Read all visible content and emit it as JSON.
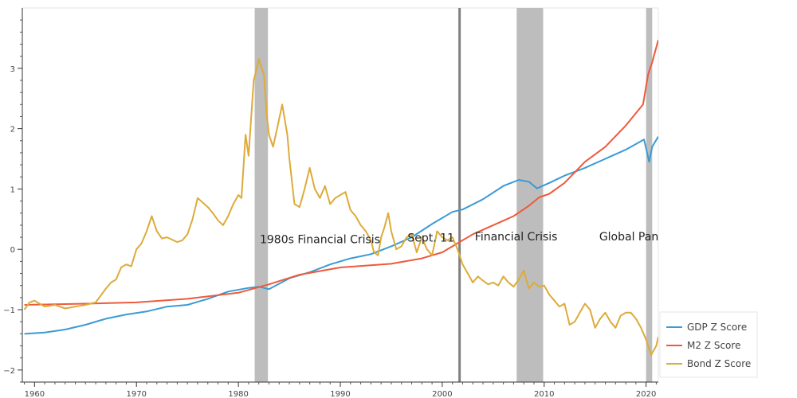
{
  "chart_data": {
    "type": "line",
    "title": "",
    "xlabel": "",
    "ylabel": "",
    "xlim": [
      1958.8,
      2021.2
    ],
    "ylim": [
      -2.2,
      4.0
    ],
    "grid": false,
    "legend_position": "bottom-right",
    "x_ticks": [
      {
        "value": 1960,
        "label": "1960"
      },
      {
        "value": 1970,
        "label": "1970"
      },
      {
        "value": 1980,
        "label": "1980"
      },
      {
        "value": 1990,
        "label": "1990"
      },
      {
        "value": 2000,
        "label": "2000"
      },
      {
        "value": 2010,
        "label": "2010"
      },
      {
        "value": 2020,
        "label": "2020"
      }
    ],
    "y_ticks": [
      {
        "value": -2,
        "label": "−2"
      },
      {
        "value": -1,
        "label": "−1"
      },
      {
        "value": 0,
        "label": "0"
      },
      {
        "value": 1,
        "label": "1"
      },
      {
        "value": 2,
        "label": "2"
      },
      {
        "value": 3,
        "label": "3"
      }
    ],
    "shaded_periods": [
      {
        "start": 1981.6,
        "end": 1982.9,
        "color": "#bdbdbd"
      },
      {
        "start": 2007.3,
        "end": 2009.9,
        "color": "#bdbdbd"
      },
      {
        "start": 2020.0,
        "end": 2020.6,
        "color": "#bdbdbd"
      }
    ],
    "event_lines": [
      {
        "x": 2001.7,
        "color": "#808080"
      }
    ],
    "annotations": [
      {
        "text": "1980s Financial Crisis",
        "x": 1982.1,
        "y": 0.1
      },
      {
        "text": "Sept. 11",
        "x": 1996.6,
        "y": 0.13
      },
      {
        "text": "Financial Crisis",
        "x": 2003.2,
        "y": 0.15
      },
      {
        "text": "Global Pan",
        "x": 2015.4,
        "y": 0.15
      }
    ],
    "series": [
      {
        "name": "GDP Z Score",
        "color": "#3a9bd5",
        "x": [
          1959.0,
          1961.0,
          1963.0,
          1965.0,
          1967.0,
          1969.0,
          1971.0,
          1973.0,
          1975.0,
          1977.0,
          1979.0,
          1981.0,
          1982.0,
          1983.0,
          1985.0,
          1987.0,
          1989.0,
          1991.0,
          1993.0,
          1995.0,
          1997.0,
          1999.0,
          2001.0,
          2002.0,
          2004.0,
          2006.0,
          2007.5,
          2008.5,
          2009.3,
          2010.5,
          2012.0,
          2014.0,
          2016.0,
          2018.0,
          2019.8,
          2020.3,
          2020.6,
          2021.2
        ],
        "y": [
          -1.4,
          -1.38,
          -1.33,
          -1.25,
          -1.15,
          -1.08,
          -1.03,
          -0.95,
          -0.92,
          -0.82,
          -0.7,
          -0.64,
          -0.62,
          -0.66,
          -0.48,
          -0.38,
          -0.25,
          -0.15,
          -0.08,
          0.05,
          0.2,
          0.42,
          0.62,
          0.66,
          0.83,
          1.05,
          1.15,
          1.12,
          1.01,
          1.1,
          1.22,
          1.35,
          1.5,
          1.65,
          1.82,
          1.45,
          1.7,
          1.87
        ]
      },
      {
        "name": "M2 Z Score",
        "color": "#ee5a3c",
        "x": [
          1959.0,
          1965.0,
          1970.0,
          1975.0,
          1980.0,
          1983.0,
          1986.0,
          1990.0,
          1995.0,
          1998.0,
          2000.0,
          2001.5,
          2003.0,
          2005.0,
          2007.0,
          2008.5,
          2009.5,
          2010.5,
          2012.0,
          2014.0,
          2016.0,
          2018.0,
          2019.7,
          2020.2,
          2020.6,
          2021.2
        ],
        "y": [
          -0.92,
          -0.9,
          -0.88,
          -0.82,
          -0.72,
          -0.58,
          -0.42,
          -0.3,
          -0.24,
          -0.15,
          -0.05,
          0.1,
          0.25,
          0.4,
          0.55,
          0.72,
          0.86,
          0.92,
          1.1,
          1.45,
          1.7,
          2.05,
          2.4,
          2.9,
          3.1,
          3.47
        ]
      },
      {
        "name": "Bond Z Score",
        "color": "#ddab3a",
        "x": [
          1959.0,
          1959.5,
          1960.0,
          1960.5,
          1961.0,
          1962.0,
          1963.0,
          1964.0,
          1965.0,
          1966.0,
          1967.0,
          1967.5,
          1968.0,
          1968.5,
          1969.0,
          1969.5,
          1970.0,
          1970.5,
          1971.0,
          1971.5,
          1972.0,
          1972.5,
          1973.0,
          1974.0,
          1974.5,
          1975.0,
          1975.5,
          1976.0,
          1977.0,
          1977.5,
          1978.0,
          1978.5,
          1979.0,
          1979.5,
          1980.0,
          1980.3,
          1980.7,
          1981.0,
          1981.5,
          1981.8,
          1982.0,
          1982.5,
          1982.8,
          1983.0,
          1983.4,
          1983.8,
          1984.3,
          1984.8,
          1985.0,
          1985.5,
          1986.0,
          1986.5,
          1987.0,
          1987.5,
          1988.0,
          1988.5,
          1989.0,
          1989.5,
          1990.0,
          1990.5,
          1991.0,
          1991.5,
          1992.0,
          1992.5,
          1993.0,
          1993.3,
          1993.7,
          1994.0,
          1994.3,
          1994.7,
          1995.0,
          1995.5,
          1996.0,
          1996.5,
          1997.0,
          1997.5,
          1998.0,
          1998.5,
          1999.0,
          1999.5,
          2000.0,
          2000.5,
          2001.0,
          2001.5,
          2002.0,
          2002.5,
          2003.0,
          2003.5,
          2004.0,
          2004.5,
          2005.0,
          2005.5,
          2006.0,
          2006.5,
          2007.0,
          2007.5,
          2008.0,
          2008.5,
          2009.0,
          2009.5,
          2010.0,
          2010.5,
          2011.0,
          2011.5,
          2012.0,
          2012.5,
          2013.0,
          2013.5,
          2014.0,
          2014.5,
          2015.0,
          2015.5,
          2016.0,
          2016.5,
          2017.0,
          2017.5,
          2018.0,
          2018.5,
          2019.0,
          2019.5,
          2020.0,
          2020.5,
          2021.0,
          2021.2
        ],
        "y": [
          -1.0,
          -0.88,
          -0.85,
          -0.9,
          -0.95,
          -0.92,
          -0.98,
          -0.95,
          -0.92,
          -0.88,
          -0.65,
          -0.55,
          -0.5,
          -0.3,
          -0.25,
          -0.28,
          0.0,
          0.1,
          0.3,
          0.55,
          0.3,
          0.18,
          0.2,
          0.12,
          0.15,
          0.25,
          0.5,
          0.85,
          0.7,
          0.6,
          0.48,
          0.4,
          0.55,
          0.75,
          0.9,
          0.85,
          1.9,
          1.55,
          2.8,
          3.0,
          3.15,
          2.9,
          2.2,
          1.9,
          1.7,
          2.0,
          2.4,
          1.9,
          1.5,
          0.75,
          0.7,
          1.0,
          1.35,
          1.0,
          0.85,
          1.05,
          0.75,
          0.85,
          0.9,
          0.95,
          0.65,
          0.55,
          0.4,
          0.3,
          0.15,
          -0.05,
          -0.1,
          0.2,
          0.35,
          0.6,
          0.3,
          0.0,
          0.05,
          0.2,
          0.25,
          -0.05,
          0.2,
          0.0,
          -0.1,
          0.3,
          0.2,
          0.15,
          0.2,
          0.0,
          -0.25,
          -0.4,
          -0.55,
          -0.45,
          -0.52,
          -0.58,
          -0.55,
          -0.6,
          -0.45,
          -0.55,
          -0.62,
          -0.5,
          -0.35,
          -0.65,
          -0.55,
          -0.62,
          -0.6,
          -0.75,
          -0.85,
          -0.95,
          -0.9,
          -1.25,
          -1.2,
          -1.05,
          -0.9,
          -1.0,
          -1.3,
          -1.15,
          -1.05,
          -1.2,
          -1.3,
          -1.1,
          -1.05,
          -1.05,
          -1.15,
          -1.3,
          -1.5,
          -1.75,
          -1.6,
          -1.45
        ]
      }
    ]
  }
}
